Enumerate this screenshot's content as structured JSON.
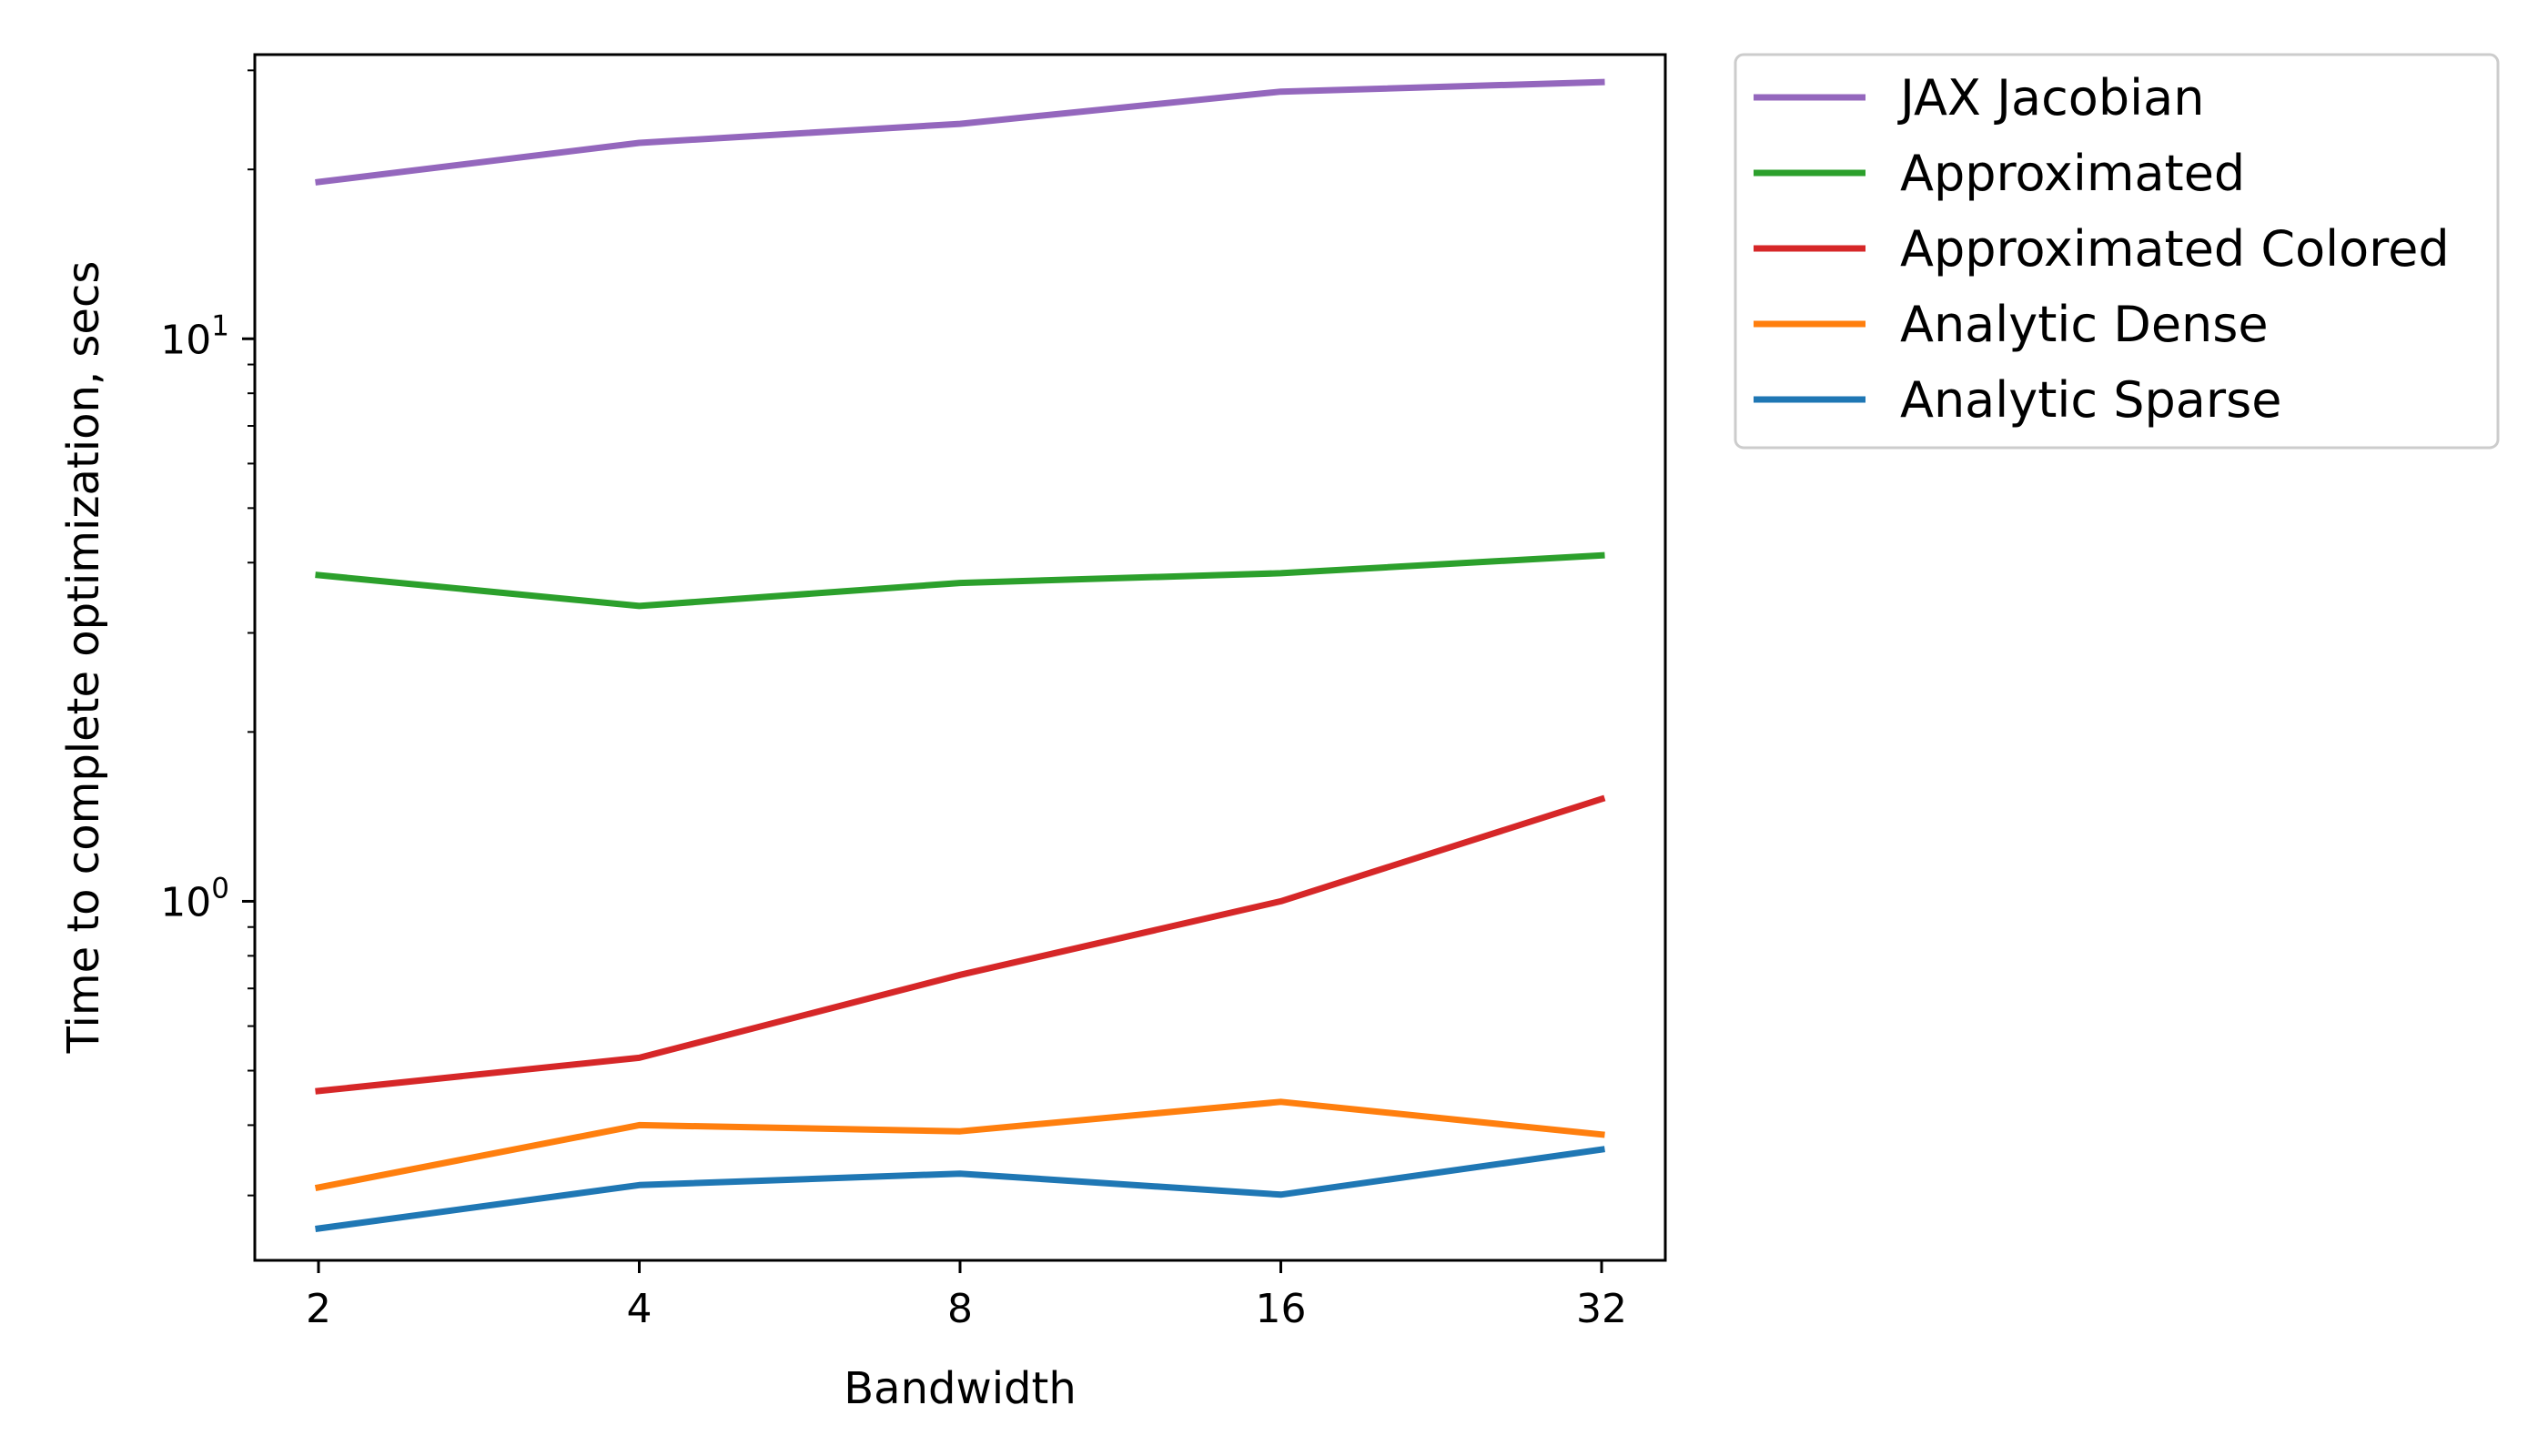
{
  "chart_data": {
    "type": "line",
    "title": "",
    "xlabel": "Bandwidth",
    "ylabel": "Time to complete optimization, secs",
    "x": [
      2,
      4,
      8,
      16,
      32
    ],
    "x_tick_labels": [
      "2",
      "4",
      "8",
      "16",
      "32"
    ],
    "x_scale": "log2",
    "y_scale": "log10",
    "ylim": [
      0.23,
      32
    ],
    "y_ticks": [
      {
        "value": 1,
        "base": "10",
        "exp": "0"
      },
      {
        "value": 10,
        "base": "10",
        "exp": "1"
      }
    ],
    "grid": false,
    "legend_position": "outside-top-right",
    "series": [
      {
        "name": "JAX Jacobian",
        "color": "#9467bd",
        "values": [
          19.0,
          22.3,
          24.1,
          27.5,
          28.6
        ]
      },
      {
        "name": "Approximated",
        "color": "#2ca02c",
        "values": [
          3.8,
          3.35,
          3.68,
          3.83,
          4.12
        ]
      },
      {
        "name": "Approximated Colored",
        "color": "#d62728",
        "values": [
          0.46,
          0.527,
          0.74,
          1.0,
          1.52
        ]
      },
      {
        "name": "Analytic Dense",
        "color": "#ff7f0e",
        "values": [
          0.31,
          0.4,
          0.39,
          0.44,
          0.385
        ]
      },
      {
        "name": "Analytic Sparse",
        "color": "#1f77b4",
        "values": [
          0.262,
          0.313,
          0.328,
          0.301,
          0.362
        ]
      }
    ]
  }
}
